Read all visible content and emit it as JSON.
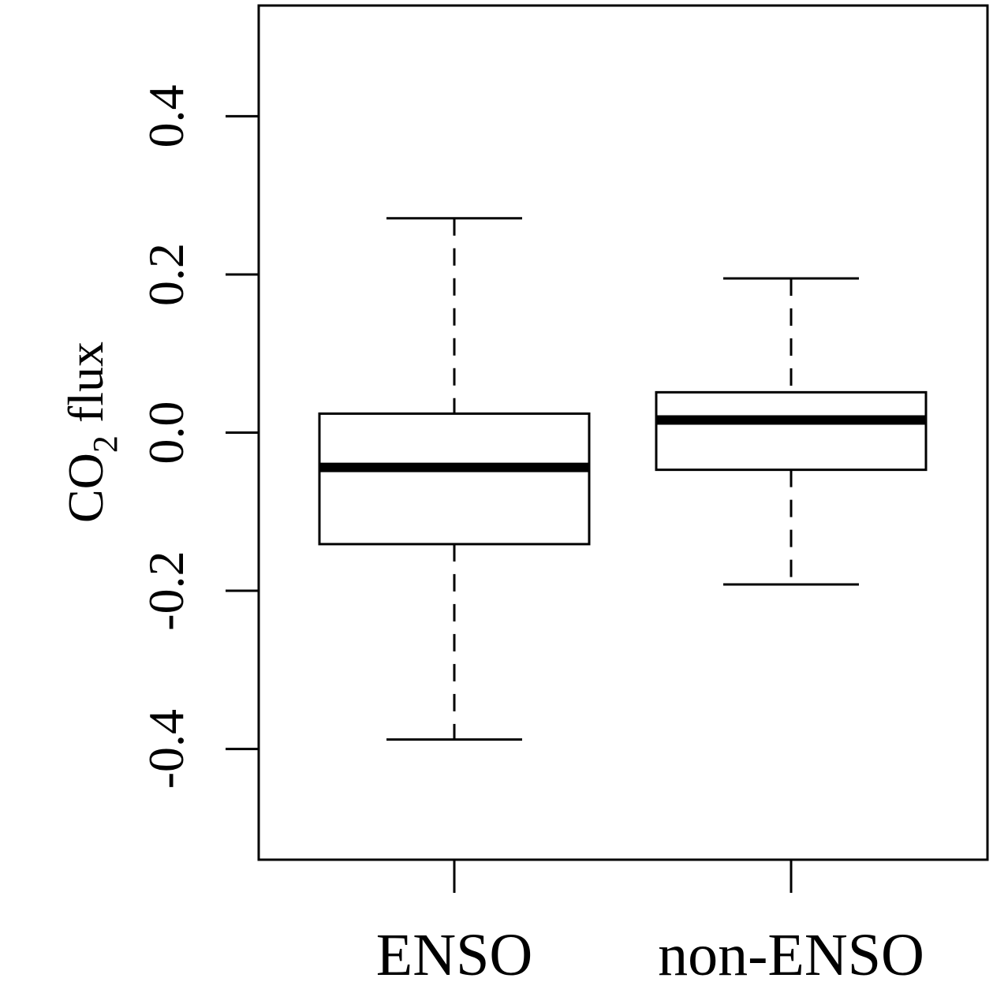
{
  "chart_data": {
    "type": "boxplot",
    "title": "",
    "xlabel": "",
    "ylabel": {
      "prefix": "CO",
      "subscript": "2",
      "suffix": " flux"
    },
    "ylim": [
      -0.54,
      0.54
    ],
    "yticks": [
      -0.4,
      -0.2,
      0.0,
      0.2,
      0.4
    ],
    "ytick_labels": [
      "-0.4",
      "-0.2",
      "0.0",
      "0.2",
      "0.4"
    ],
    "grid": false,
    "legend": "none",
    "categories": [
      "ENSO",
      "non-ENSO"
    ],
    "boxes": [
      {
        "category": "ENSO",
        "whisker_low": -0.388,
        "q1": -0.141,
        "median": -0.044,
        "q3": 0.024,
        "whisker_high": 0.271
      },
      {
        "category": "non-ENSO",
        "whisker_low": -0.192,
        "q1": -0.047,
        "median": 0.016,
        "q3": 0.051,
        "whisker_high": 0.195
      }
    ]
  }
}
